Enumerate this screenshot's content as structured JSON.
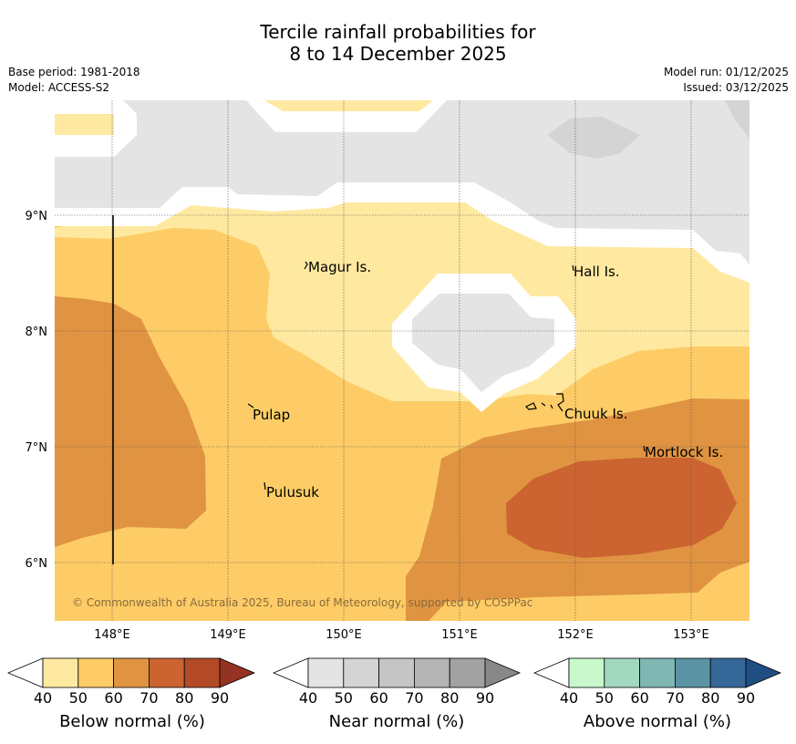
{
  "title": {
    "line1": "Tercile rainfall probabilities for",
    "line2": "8 to 14 December 2025"
  },
  "meta": {
    "base_period": "Base period: 1981-2018",
    "model": "Model: ACCESS-S2",
    "model_run": "Model run: 01/12/2025",
    "issued": "Issued: 03/12/2025"
  },
  "map": {
    "x_ticks": [
      "148°E",
      "149°E",
      "150°E",
      "151°E",
      "152°E",
      "153°E"
    ],
    "y_ticks": [
      "9°N",
      "8°N",
      "7°N",
      "6°N"
    ],
    "places": [
      "Magur Is.",
      "Hall Is.",
      "Pulap",
      "Chuuk Is.",
      "Mortlock Is.",
      "Pulusuk"
    ],
    "copyright": "© Commonwealth of Australia 2025, Bureau of Meteorology, supported by COSPPac"
  },
  "legend": {
    "below": {
      "label": "Below normal (%)",
      "ticks": [
        "40",
        "50",
        "60",
        "70",
        "80",
        "90"
      ],
      "colors": [
        "#ffe9a0",
        "#fdcc66",
        "#e09442",
        "#cb6430",
        "#b24a28",
        "#953222"
      ]
    },
    "near": {
      "label": "Near normal (%)",
      "ticks": [
        "40",
        "50",
        "60",
        "70",
        "80",
        "90"
      ],
      "colors": [
        "#e4e4e4",
        "#d4d4d4",
        "#c5c5c5",
        "#b4b4b4",
        "#a2a2a2",
        "#888888"
      ]
    },
    "above": {
      "label": "Above normal (%)",
      "ticks": [
        "40",
        "50",
        "60",
        "70",
        "80",
        "90"
      ],
      "colors": [
        "#c8f8cc",
        "#a2d8bf",
        "#7fb7b3",
        "#5a93a3",
        "#356898",
        "#1f4e82"
      ]
    }
  }
}
